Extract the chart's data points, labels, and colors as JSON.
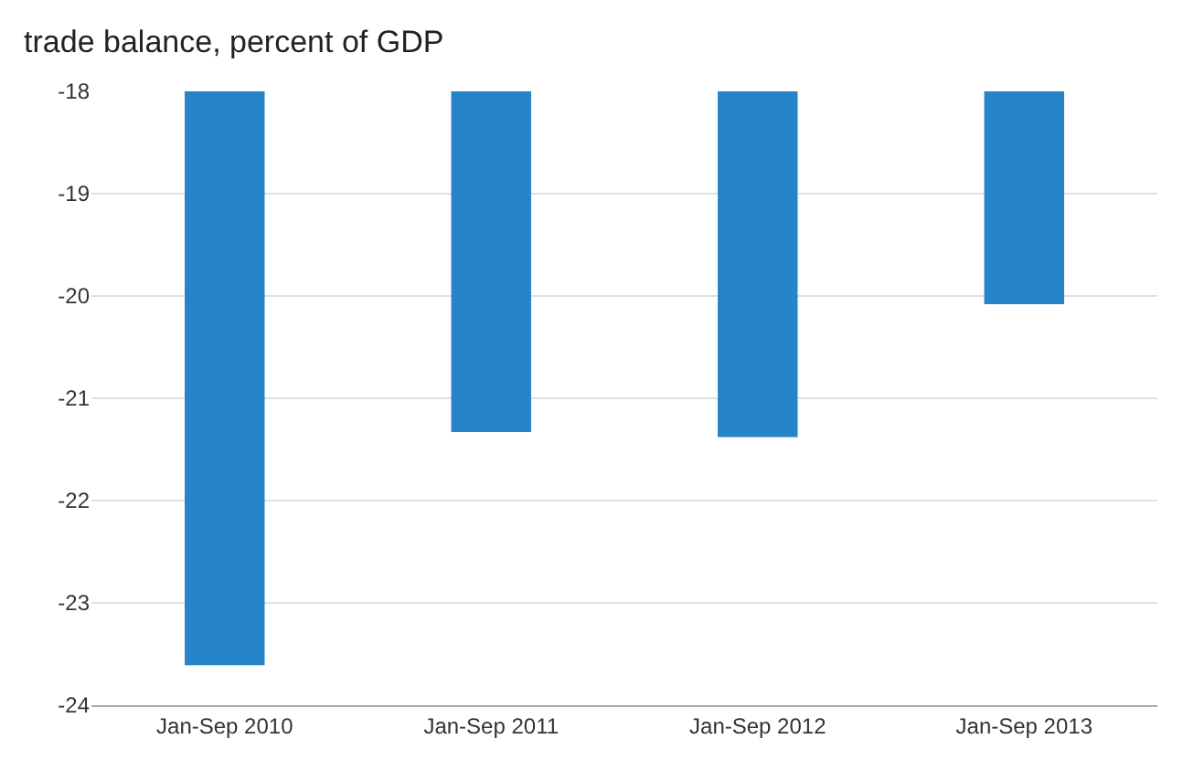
{
  "chart_data": {
    "type": "bar",
    "title": "trade balance, percent of GDP",
    "categories": [
      "Jan-Sep 2010",
      "Jan-Sep 2011",
      "Jan-Sep 2012",
      "Jan-Sep 2013"
    ],
    "values": [
      -23.61,
      -21.33,
      -21.38,
      -20.08
    ],
    "color": "#2585c8",
    "ylim": [
      -24,
      -18
    ],
    "yticks": [
      -24,
      -23,
      -22,
      -21,
      -20,
      -19,
      -18
    ],
    "grid": "y",
    "legend": false
  }
}
